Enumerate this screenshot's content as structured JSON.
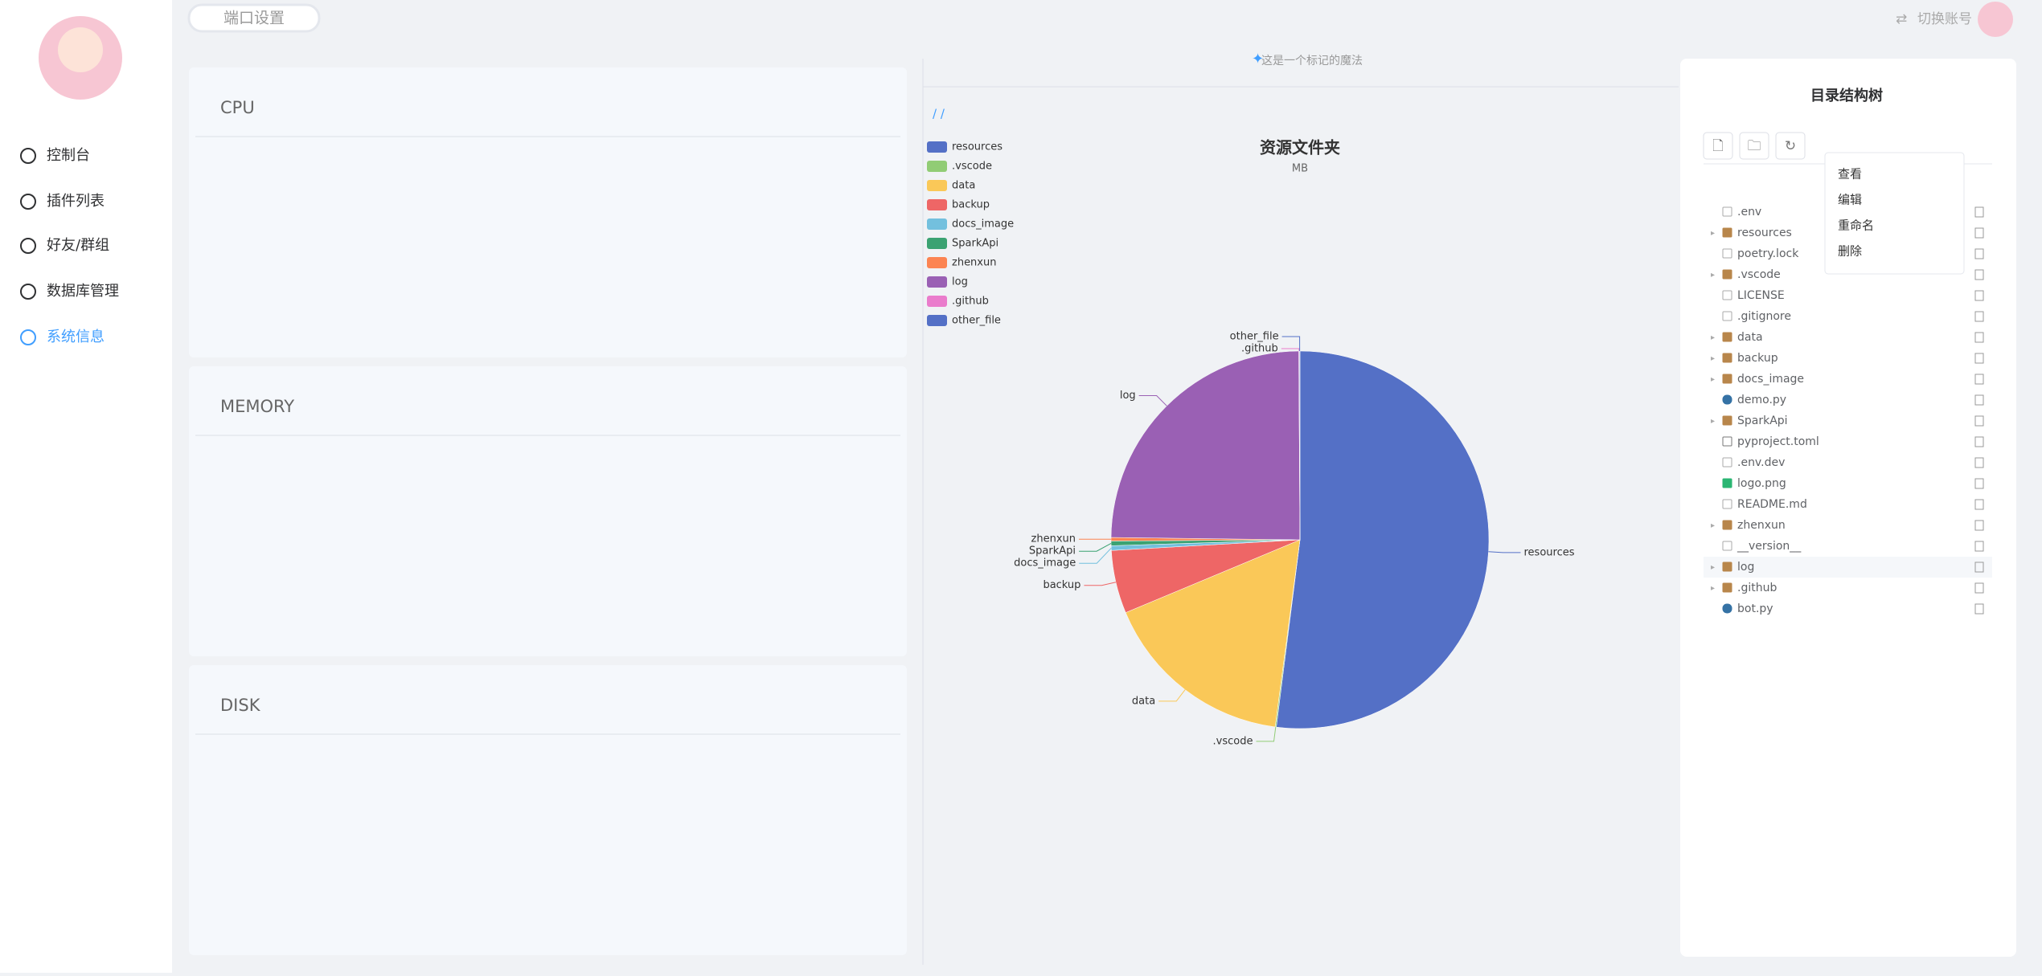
{
  "header": {
    "port_setting": "端口设置",
    "switch_account": "切换账号"
  },
  "sidebar": {
    "items": [
      "控制台",
      "插件列表",
      "好友/群组",
      "数据库管理",
      "系统信息"
    ]
  },
  "panels": [
    "CPU",
    "MEMORY",
    "DISK"
  ],
  "middle": {
    "hint": "这是一个标记的魔法",
    "path": "/ /"
  },
  "chart_data": {
    "type": "pie",
    "title": "资源文件夹",
    "subtitle": "MB",
    "categories": [
      "resources",
      ".vscode",
      "data",
      "backup",
      "docs_image",
      "SparkApi",
      "zhenxun",
      "log",
      ".github",
      "other_file"
    ],
    "values": [
      52,
      0.1,
      16.6,
      5.4,
      0.4,
      0.4,
      0.3,
      24.7,
      0.05,
      0.05
    ],
    "colors": [
      "#5470c6",
      "#91cc75",
      "#fac858",
      "#ee6666",
      "#73c0de",
      "#3ba272",
      "#fc8452",
      "#9a60b4",
      "#ea7ccc",
      "#5470c6"
    ]
  },
  "tree": {
    "title": "目录结构树",
    "items": [
      ".env",
      "resources",
      "poetry.lock",
      ".vscode",
      "LICENSE",
      ".gitignore",
      "data",
      "backup",
      "docs_image",
      "demo.py",
      "SparkApi",
      "pyproject.toml",
      ".env.dev",
      "logo.png",
      "README.md",
      "zhenxun",
      "__version__",
      "log",
      ".github",
      "bot.py"
    ]
  },
  "context_menu": [
    "查看",
    "编辑",
    "重命名",
    "删除"
  ]
}
